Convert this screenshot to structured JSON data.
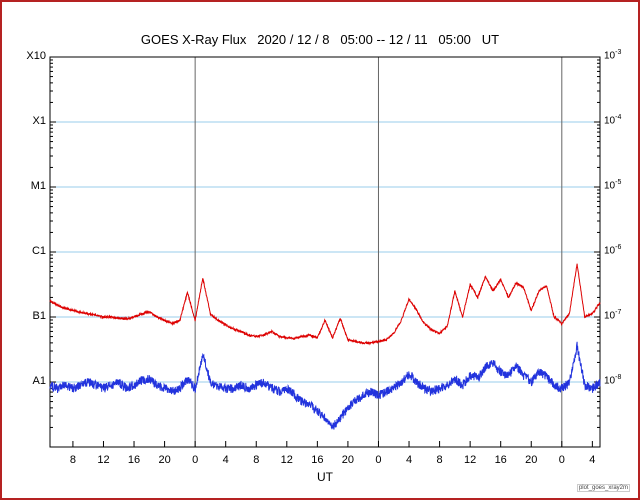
{
  "page": {
    "background": "#ffffff",
    "border_color": "#b52222"
  },
  "footer": {
    "watermark": "plot_goes_xray2m"
  },
  "chart_data": {
    "type": "line",
    "title": "GOES X-Ray Flux   2020 / 12 / 8   05:00 -- 12 / 11   05:00   UT",
    "xlabel": "UT",
    "xlim_hours": [
      0,
      72
    ],
    "ylim_log_wm2": [
      -3,
      -9
    ],
    "grid": true,
    "grid_color": "#99cceb",
    "day_line_color": "#666666",
    "frame_color": "#000000",
    "gridline_logs": [
      -4,
      -5,
      -6,
      -7,
      -8
    ],
    "day_boundary_hours": [
      19,
      43,
      67
    ],
    "x_tick_hours": [
      3,
      7,
      11,
      15,
      19,
      23,
      27,
      31,
      35,
      39,
      43,
      47,
      51,
      55,
      59,
      63,
      67,
      71
    ],
    "x_tick_labels": [
      "8",
      "12",
      "16",
      "20",
      "0",
      "4",
      "8",
      "12",
      "16",
      "20",
      "0",
      "4",
      "8",
      "12",
      "16",
      "20",
      "0",
      "4"
    ],
    "left_class_labels": [
      {
        "label": "X10",
        "log": -3
      },
      {
        "label": "X1",
        "log": -4
      },
      {
        "label": "M1",
        "log": -5
      },
      {
        "label": "C1",
        "log": -6
      },
      {
        "label": "B1",
        "log": -7
      },
      {
        "label": "A1",
        "log": -8
      }
    ],
    "right_exponent_labels": [
      {
        "mantissa": "10",
        "exp": "-3",
        "log": -3
      },
      {
        "mantissa": "10",
        "exp": "-4",
        "log": -4
      },
      {
        "mantissa": "10",
        "exp": "-5",
        "log": -5
      },
      {
        "mantissa": "10",
        "exp": "-6",
        "log": -6
      },
      {
        "mantissa": "10",
        "exp": "-7",
        "log": -7
      },
      {
        "mantissa": "10",
        "exp": "-8",
        "log": -8
      }
    ],
    "series": [
      {
        "name": "xray-long-red",
        "color": "#dd0000",
        "noise_decades": 0.015,
        "x_hour_start": 0,
        "x_hour_step": 1,
        "log_flux": [
          -6.75,
          -6.82,
          -6.87,
          -6.9,
          -6.93,
          -6.95,
          -6.97,
          -7.0,
          -7.0,
          -7.02,
          -7.03,
          -7.0,
          -6.95,
          -6.92,
          -7.0,
          -7.05,
          -7.1,
          -7.05,
          -6.62,
          -7.05,
          -6.4,
          -6.95,
          -7.05,
          -7.12,
          -7.18,
          -7.22,
          -7.28,
          -7.3,
          -7.28,
          -7.22,
          -7.3,
          -7.32,
          -7.33,
          -7.3,
          -7.28,
          -7.32,
          -7.05,
          -7.32,
          -7.02,
          -7.35,
          -7.38,
          -7.4,
          -7.4,
          -7.38,
          -7.35,
          -7.25,
          -7.05,
          -6.72,
          -6.9,
          -7.1,
          -7.2,
          -7.25,
          -7.15,
          -6.6,
          -7.0,
          -6.5,
          -6.7,
          -6.38,
          -6.6,
          -6.42,
          -6.7,
          -6.48,
          -6.55,
          -6.9,
          -6.6,
          -6.52,
          -7.0,
          -7.1,
          -6.95,
          -6.18,
          -7.0,
          -6.95,
          -6.78
        ]
      },
      {
        "name": "xray-short-blue",
        "color": "#2233dd",
        "noise_decades": 0.07,
        "x_hour_start": 0,
        "x_hour_step": 1,
        "log_flux": [
          -8.05,
          -8.1,
          -8.05,
          -8.1,
          -8.05,
          -8.0,
          -8.05,
          -8.1,
          -8.05,
          -8.0,
          -8.1,
          -8.05,
          -7.98,
          -7.95,
          -8.05,
          -8.1,
          -8.15,
          -8.1,
          -7.95,
          -8.1,
          -7.58,
          -8.0,
          -8.08,
          -8.1,
          -8.1,
          -8.05,
          -8.1,
          -8.05,
          -8.0,
          -8.1,
          -8.15,
          -8.1,
          -8.2,
          -8.3,
          -8.35,
          -8.45,
          -8.55,
          -8.7,
          -8.55,
          -8.4,
          -8.28,
          -8.2,
          -8.15,
          -8.2,
          -8.15,
          -8.1,
          -8.0,
          -7.88,
          -8.0,
          -8.1,
          -8.15,
          -8.1,
          -8.05,
          -7.95,
          -8.05,
          -7.9,
          -7.95,
          -7.78,
          -7.7,
          -7.85,
          -7.9,
          -7.75,
          -7.9,
          -8.0,
          -7.85,
          -7.92,
          -8.05,
          -8.1,
          -8.0,
          -7.45,
          -8.05,
          -8.1,
          -8.0
        ]
      }
    ]
  }
}
